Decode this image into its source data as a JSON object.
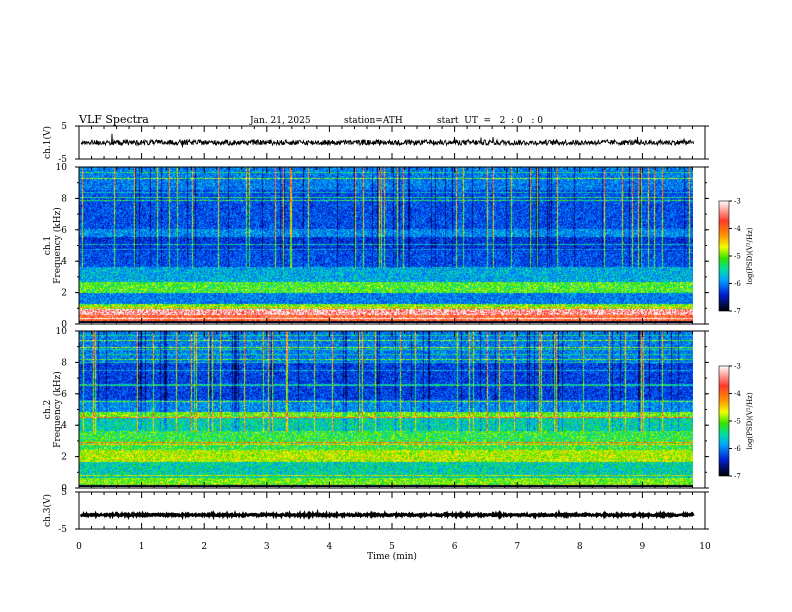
{
  "header": {
    "title": "VLF  Spectra",
    "date": "Jan. 21, 2025",
    "station": "station=ATH",
    "start": "start  UT  =   2  : 0   : 0"
  },
  "chart_data": {
    "type": "heatmap",
    "xlabel": "Time  (min)",
    "xlim": [
      0,
      10
    ],
    "xticks": [
      "0",
      "1",
      "2",
      "3",
      "4",
      "5",
      "6",
      "7",
      "8",
      "9",
      "10"
    ],
    "panels": [
      {
        "name": "ch1-waveform",
        "type": "line",
        "ylabel": "ch.1(V)",
        "ylim": [
          -5,
          5
        ],
        "yticks": [
          "5",
          "-5"
        ],
        "level": 0,
        "noise_amplitude": 0.8,
        "end_minute": 9.82,
        "color": "#000000"
      },
      {
        "name": "ch1-spectrogram",
        "type": "heatmap",
        "ylabel": "ch.1\nFrequency  (kHz)",
        "ylim": [
          0,
          10
        ],
        "yticks": [
          "0",
          "2",
          "4",
          "6",
          "8",
          "10"
        ],
        "end_minute": 9.82,
        "colorbar": {
          "label": "log(PSD)(V²/Hz)",
          "range": [
            -7,
            -3
          ],
          "ticks": [
            "-3",
            "-4",
            "-5",
            "-6",
            "-7"
          ]
        },
        "bands_khz": [
          {
            "f0": 0.0,
            "f1": 0.15,
            "level": 0.0
          },
          {
            "f0": 0.15,
            "f1": 0.5,
            "level": 0.85
          },
          {
            "f0": 0.5,
            "f1": 0.9,
            "level": 0.95
          },
          {
            "f0": 0.9,
            "f1": 1.2,
            "level": 0.55
          },
          {
            "f0": 1.2,
            "f1": 1.9,
            "level": 0.3
          },
          {
            "f0": 1.9,
            "f1": 2.6,
            "level": 0.52
          },
          {
            "f0": 2.6,
            "f1": 3.6,
            "level": 0.36
          },
          {
            "f0": 3.6,
            "f1": 4.6,
            "level": 0.24
          },
          {
            "f0": 4.6,
            "f1": 5.5,
            "level": 0.2
          },
          {
            "f0": 5.5,
            "f1": 6.0,
            "level": 0.32
          },
          {
            "f0": 6.0,
            "f1": 8.5,
            "level": 0.24
          },
          {
            "f0": 8.5,
            "f1": 10.0,
            "level": 0.3
          }
        ]
      },
      {
        "name": "ch2-spectrogram",
        "type": "heatmap",
        "ylabel": "ch.2\nFrequency  (kHz)",
        "ylim": [
          0,
          10
        ],
        "yticks": [
          "0",
          "2",
          "4",
          "6",
          "8",
          "10"
        ],
        "end_minute": 9.82,
        "colorbar": {
          "label": "log(PSD)(V²/Hz)",
          "range": [
            -7,
            -3
          ],
          "ticks": [
            "-3",
            "-4",
            "-5",
            "-6",
            "-7"
          ]
        },
        "bands_khz": [
          {
            "f0": 0.0,
            "f1": 0.15,
            "level": 0.0
          },
          {
            "f0": 0.15,
            "f1": 0.6,
            "level": 0.55
          },
          {
            "f0": 0.6,
            "f1": 1.6,
            "level": 0.42
          },
          {
            "f0": 1.6,
            "f1": 2.4,
            "level": 0.6
          },
          {
            "f0": 2.4,
            "f1": 3.6,
            "level": 0.5
          },
          {
            "f0": 3.6,
            "f1": 4.4,
            "level": 0.42
          },
          {
            "f0": 4.4,
            "f1": 4.8,
            "level": 0.55
          },
          {
            "f0": 4.8,
            "f1": 5.6,
            "level": 0.32
          },
          {
            "f0": 5.6,
            "f1": 8.0,
            "level": 0.22
          },
          {
            "f0": 8.0,
            "f1": 10.0,
            "level": 0.3
          }
        ]
      },
      {
        "name": "ch3-waveform",
        "type": "line",
        "ylabel": "ch.3(V)",
        "ylim": [
          -5,
          5
        ],
        "yticks": [
          "5",
          "-5"
        ],
        "level": -1.2,
        "noise_amplitude": 0.25,
        "end_minute": 9.82,
        "color": "#000000"
      }
    ]
  }
}
